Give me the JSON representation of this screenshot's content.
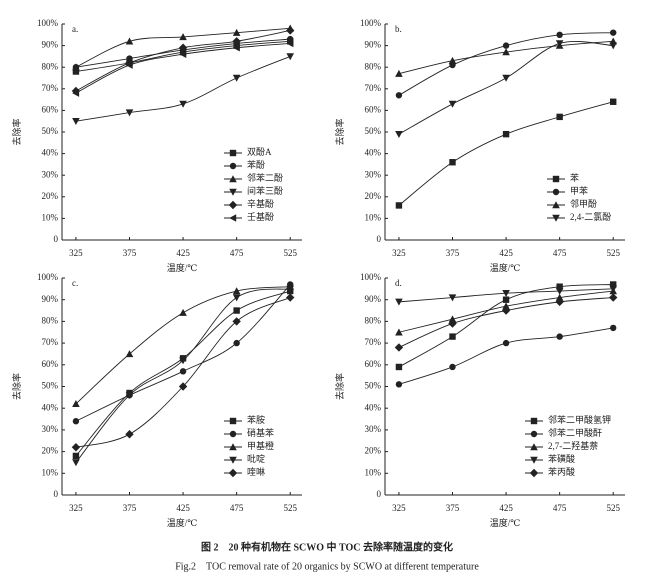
{
  "chart_data": [
    {
      "type": "line",
      "title": "a.",
      "x_label": "温度/℃",
      "y_label": "去除率",
      "color": "#222",
      "legend": "lower right",
      "x": [
        325,
        375,
        425,
        475,
        525
      ],
      "xlim": [
        312,
        536
      ],
      "xticks": [
        325,
        375,
        425,
        475,
        525
      ],
      "ylim": [
        0,
        100
      ],
      "yticks": [
        0,
        {
          "value": 10,
          "label": "10%"
        },
        {
          "value": 20,
          "label": "20%"
        },
        {
          "value": 30,
          "label": "30%"
        },
        {
          "value": 40,
          "label": "40%"
        },
        {
          "value": 50,
          "label": "50%"
        },
        {
          "value": 60,
          "label": "60%"
        },
        {
          "value": 70,
          "label": "70%"
        },
        {
          "value": 80,
          "label": "80%"
        },
        {
          "value": 90,
          "label": "90%"
        },
        {
          "value": 100,
          "label": "100%"
        }
      ],
      "series": [
        {
          "name": "双酚A",
          "marker": "square",
          "values": [
            78,
            82,
            87,
            90,
            92
          ]
        },
        {
          "name": "苯酚",
          "marker": "circle",
          "values": [
            80,
            84,
            88,
            91,
            93
          ]
        },
        {
          "name": "邻苯二酚",
          "marker": "triangle-up",
          "values": [
            80,
            92,
            94,
            96,
            98
          ]
        },
        {
          "name": "间苯三酚",
          "marker": "triangle-down",
          "values": [
            55,
            59,
            63,
            75,
            85
          ]
        },
        {
          "name": "辛基酚",
          "marker": "diamond",
          "values": [
            69,
            82,
            89,
            92,
            97
          ]
        },
        {
          "name": "壬基酚",
          "marker": "triangle-left",
          "values": [
            68,
            81,
            86,
            89,
            91
          ]
        }
      ]
    },
    {
      "type": "line",
      "title": "b.",
      "x_label": "温度/℃",
      "y_label": "去除率",
      "color": "#222",
      "legend": "lower right",
      "x": [
        325,
        375,
        425,
        475,
        525
      ],
      "xlim": [
        312,
        536
      ],
      "xticks": [
        325,
        375,
        425,
        475,
        525
      ],
      "ylim": [
        0,
        100
      ],
      "yticks": [
        0,
        {
          "value": 10,
          "label": "10%"
        },
        {
          "value": 20,
          "label": "20%"
        },
        {
          "value": 30,
          "label": "30%"
        },
        {
          "value": 40,
          "label": "40%"
        },
        {
          "value": 50,
          "label": "50%"
        },
        {
          "value": 60,
          "label": "60%"
        },
        {
          "value": 70,
          "label": "70%"
        },
        {
          "value": 80,
          "label": "80%"
        },
        {
          "value": 90,
          "label": "90%"
        },
        {
          "value": 100,
          "label": "100%"
        }
      ],
      "series": [
        {
          "name": "苯",
          "marker": "square",
          "values": [
            16,
            36,
            49,
            57,
            64
          ]
        },
        {
          "name": "甲苯",
          "marker": "circle",
          "values": [
            67,
            81,
            90,
            95,
            96
          ]
        },
        {
          "name": "邻甲酚",
          "marker": "triangle-up",
          "values": [
            77,
            83,
            87,
            90,
            92
          ]
        },
        {
          "name": "2,4-二氯酚",
          "marker": "triangle-down",
          "values": [
            49,
            63,
            75,
            91,
            90
          ]
        }
      ]
    },
    {
      "type": "line",
      "title": "c.",
      "x_label": "温度/℃",
      "y_label": "去除率",
      "color": "#222",
      "legend": "lower right",
      "x": [
        325,
        375,
        425,
        475,
        525
      ],
      "xlim": [
        312,
        536
      ],
      "xticks": [
        325,
        375,
        425,
        475,
        525
      ],
      "ylim": [
        0,
        100
      ],
      "yticks": [
        0,
        {
          "value": 10,
          "label": "10%"
        },
        {
          "value": 20,
          "label": "20%"
        },
        {
          "value": 30,
          "label": "30%"
        },
        {
          "value": 40,
          "label": "40%"
        },
        {
          "value": 50,
          "label": "50%"
        },
        {
          "value": 60,
          "label": "60%"
        },
        {
          "value": 70,
          "label": "70%"
        },
        {
          "value": 80,
          "label": "80%"
        },
        {
          "value": 90,
          "label": "90%"
        },
        {
          "value": 100,
          "label": "100%"
        }
      ],
      "series": [
        {
          "name": "苯胺",
          "marker": "square",
          "values": [
            18,
            47,
            63,
            85,
            94
          ]
        },
        {
          "name": "硝基苯",
          "marker": "circle",
          "values": [
            34,
            46,
            57,
            70,
            97
          ]
        },
        {
          "name": "甲基橙",
          "marker": "triangle-up",
          "values": [
            42,
            65,
            84,
            94,
            96
          ]
        },
        {
          "name": "吡啶",
          "marker": "triangle-down",
          "values": [
            15,
            46,
            62,
            91,
            95
          ]
        },
        {
          "name": "喹啉",
          "marker": "diamond",
          "values": [
            22,
            28,
            50,
            80,
            91
          ]
        }
      ]
    },
    {
      "type": "line",
      "title": "d.",
      "x_label": "温度/℃",
      "y_label": "去除率",
      "color": "#222",
      "legend": "lower right",
      "x": [
        325,
        375,
        425,
        475,
        525
      ],
      "xlim": [
        312,
        536
      ],
      "xticks": [
        325,
        375,
        425,
        475,
        525
      ],
      "ylim": [
        0,
        100
      ],
      "yticks": [
        0,
        {
          "value": 10,
          "label": "10%"
        },
        {
          "value": 20,
          "label": "20%"
        },
        {
          "value": 30,
          "label": "30%"
        },
        {
          "value": 40,
          "label": "40%"
        },
        {
          "value": 50,
          "label": "50%"
        },
        {
          "value": 60,
          "label": "60%"
        },
        {
          "value": 70,
          "label": "70%"
        },
        {
          "value": 80,
          "label": "80%"
        },
        {
          "value": 90,
          "label": "90%"
        },
        {
          "value": 100,
          "label": "100%"
        }
      ],
      "series": [
        {
          "name": "邻苯二甲酸氢钾",
          "marker": "square",
          "values": [
            59,
            73,
            90,
            96,
            97
          ]
        },
        {
          "name": "邻苯二甲酸酐",
          "marker": "circle",
          "values": [
            51,
            59,
            70,
            73,
            77
          ]
        },
        {
          "name": "2,7-二羟基萘",
          "marker": "triangle-up",
          "values": [
            75,
            81,
            87,
            91,
            94
          ]
        },
        {
          "name": "苯磺酸",
          "marker": "triangle-down",
          "values": [
            89,
            91,
            93,
            94,
            95
          ]
        },
        {
          "name": "苯丙酸",
          "marker": "diamond",
          "values": [
            68,
            79,
            85,
            89,
            91
          ]
        }
      ]
    }
  ],
  "caption": {
    "zh": "图 2　20 种有机物在 SCWO 中 TOC 去除率随温度的变化",
    "en": "Fig.2　TOC removal rate of 20 organics by SCWO at different temperature"
  }
}
